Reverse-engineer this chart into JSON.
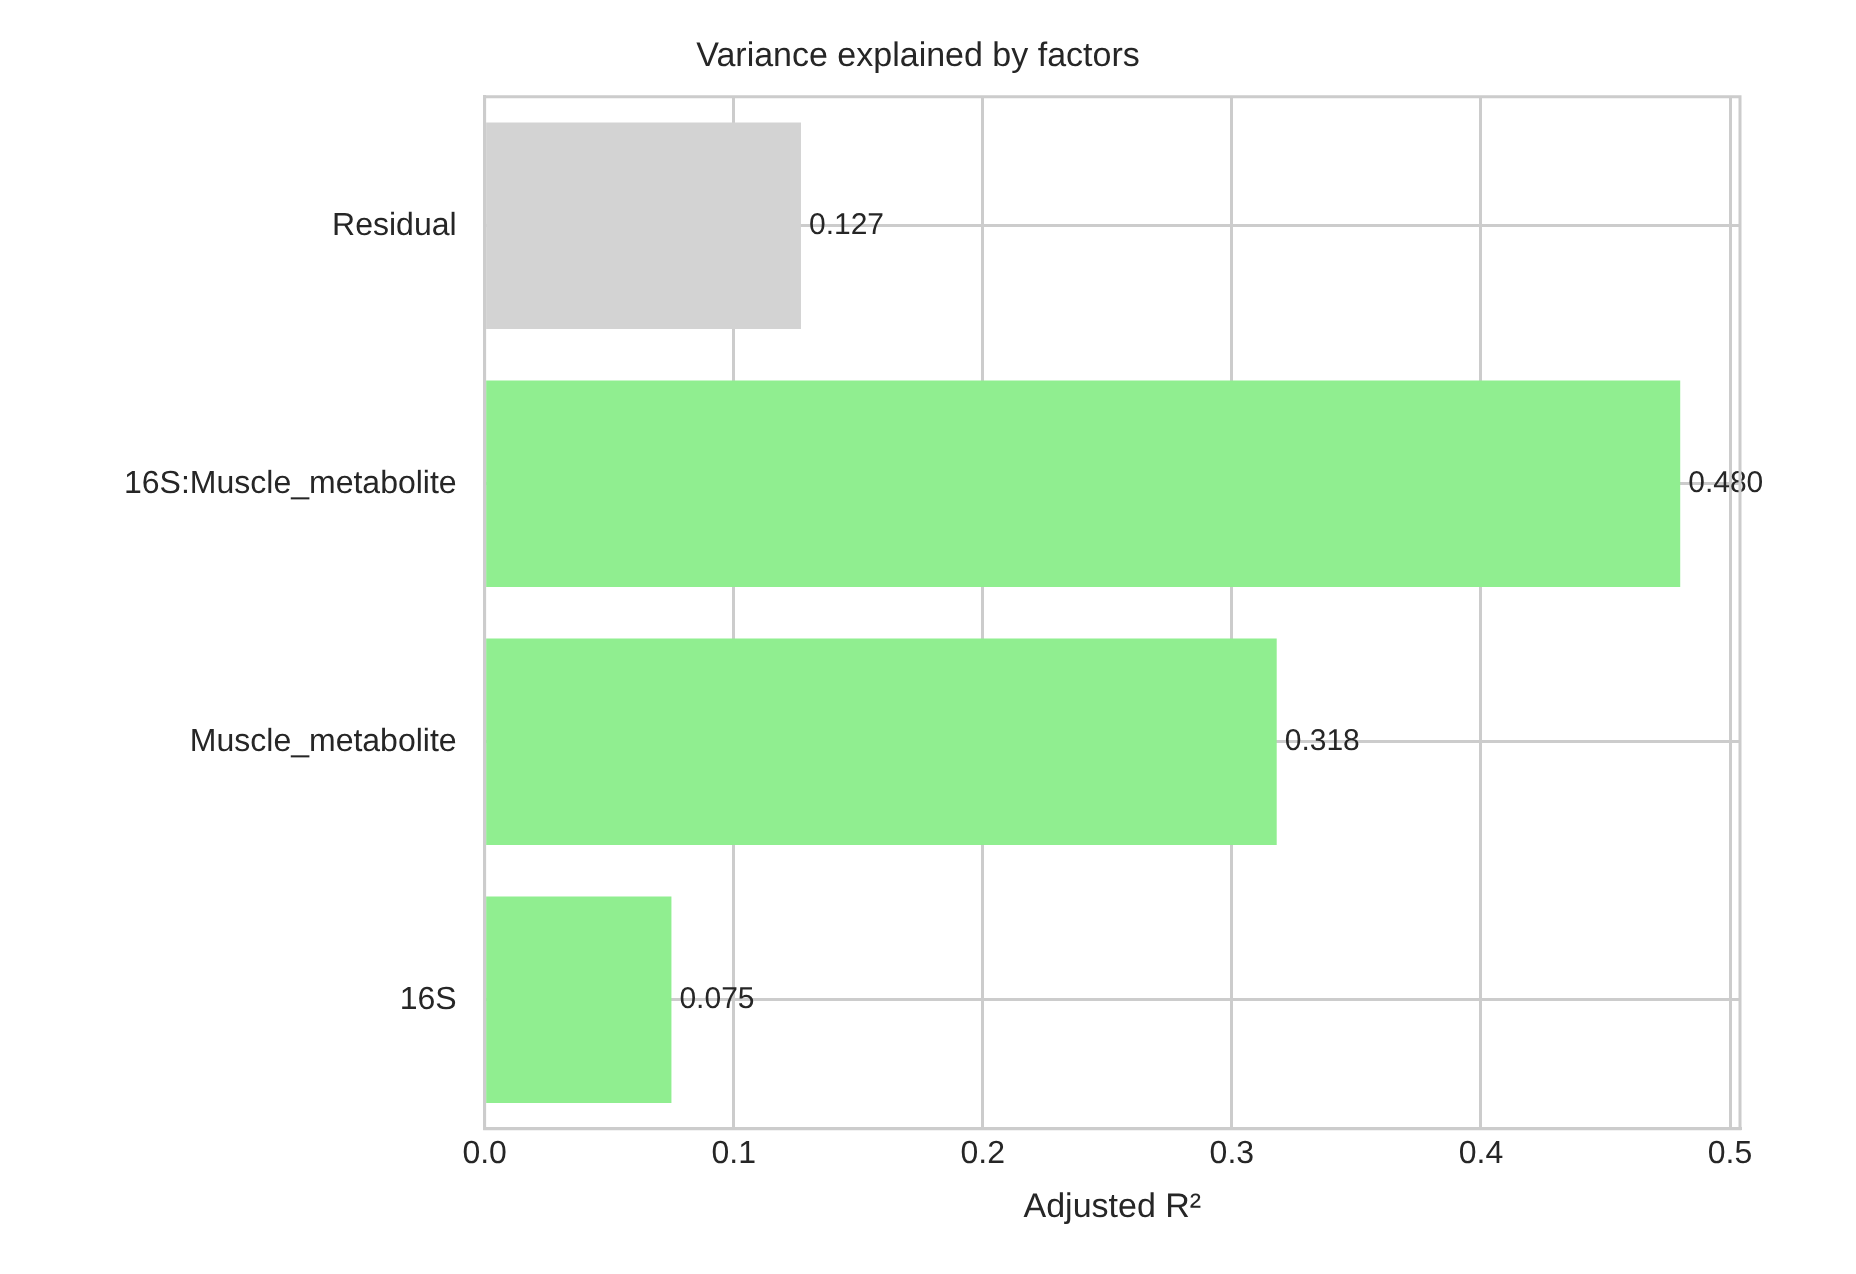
{
  "chart_data": {
    "type": "bar",
    "orientation": "horizontal",
    "title": "Variance explained by factors",
    "xlabel": "Adjusted R²",
    "categories": [
      "Residual",
      "16S:Muscle_metabolite",
      "Muscle_metabolite",
      "16S"
    ],
    "values": [
      0.127,
      0.48,
      0.318,
      0.075
    ],
    "value_labels": [
      "0.127",
      "0.480",
      "0.318",
      "0.075"
    ],
    "colors": [
      "#d3d3d3",
      "#90ee90",
      "#90ee90",
      "#90ee90"
    ],
    "xlim": [
      0,
      0.504
    ],
    "xticks": [
      {
        "value": 0,
        "label": "0.0"
      },
      0.1,
      0.2,
      0.3,
      0.4,
      0.5
    ],
    "grid": true,
    "legend": false
  }
}
